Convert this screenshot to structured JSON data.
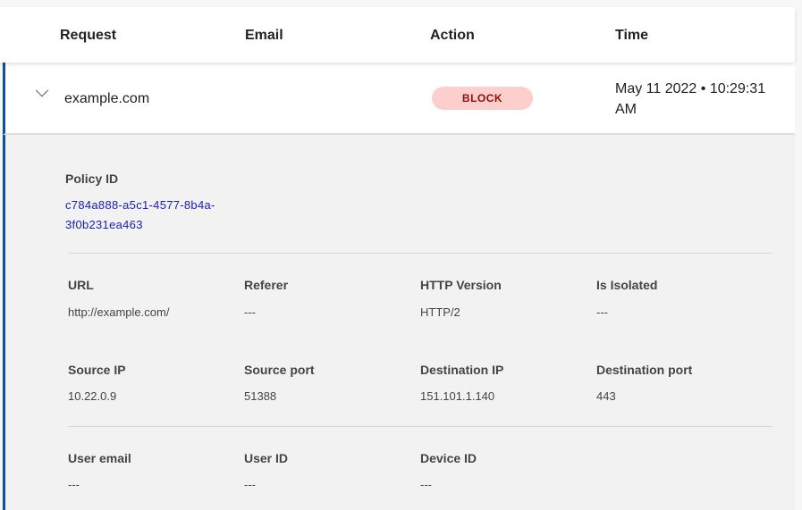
{
  "columns": [
    "Request",
    "Email",
    "Action",
    "Time"
  ],
  "row": {
    "request": "example.com",
    "action": "BLOCK",
    "time": "May 11 2022 • 10:29:31 AM",
    "action_color": "#fccfcc",
    "accent": "#0a4fb0"
  },
  "policy": {
    "label": "Policy ID",
    "value": "c784a888-a5c1-4577-8b4a-3f0b231ea463"
  },
  "fields": [
    [
      {
        "label": "URL",
        "value": "http://example.com/"
      },
      {
        "label": "Referer",
        "value": "---"
      },
      {
        "label": "HTTP Version",
        "value": "HTTP/2"
      },
      {
        "label": "Is Isolated",
        "value": "---"
      }
    ],
    [
      {
        "label": "Source IP",
        "value": "10.22.0.9"
      },
      {
        "label": "Source port",
        "value": "51388"
      },
      {
        "label": "Destination IP",
        "value": "151.101.1.140"
      },
      {
        "label": "Destination port",
        "value": "443"
      }
    ],
    [
      {
        "label": "User email",
        "value": "---"
      },
      {
        "label": "User ID",
        "value": "---"
      },
      {
        "label": "Device ID",
        "value": "---"
      }
    ]
  ]
}
